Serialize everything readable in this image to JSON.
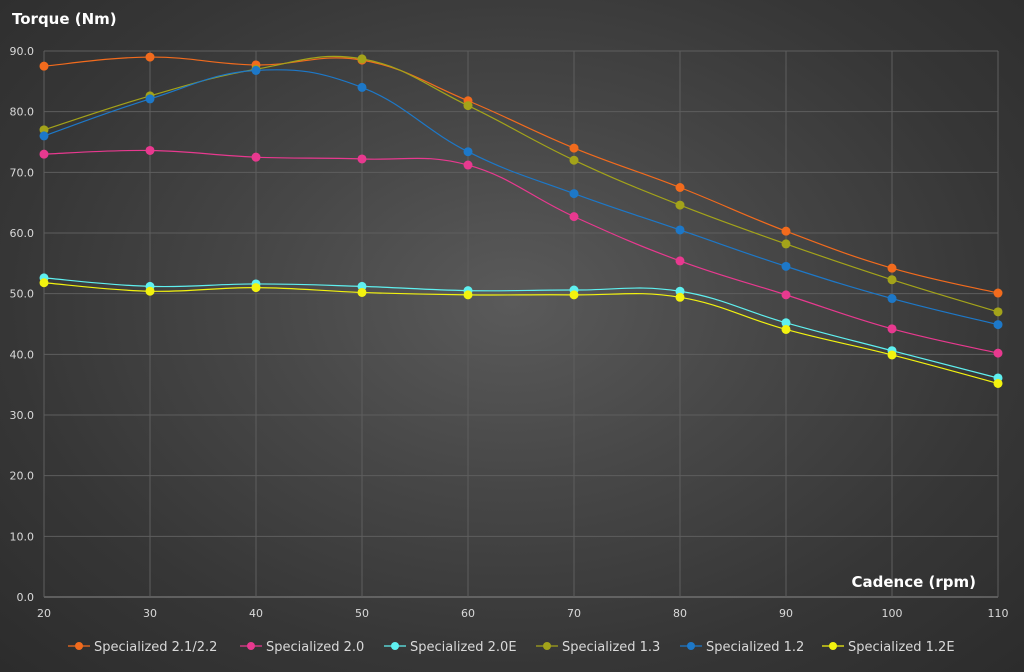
{
  "chart_data": {
    "type": "line",
    "ylabel": "Torque (Nm)",
    "xlabel": "Cadence (rpm)",
    "x": [
      20,
      30,
      40,
      50,
      60,
      70,
      80,
      90,
      100,
      110
    ],
    "x_tick_labels": [
      "20",
      "30",
      "40",
      "50",
      "60",
      "70",
      "80",
      "90",
      "100",
      "110"
    ],
    "ylim": [
      0,
      90
    ],
    "y_tick_labels": [
      "0.0",
      "10.0",
      "20.0",
      "30.0",
      "40.0",
      "50.0",
      "60.0",
      "70.0",
      "80.0",
      "90.0"
    ],
    "grid": true,
    "legend_position": "bottom",
    "series": [
      {
        "name": "Specialized 2.1/2.2",
        "color": "#f26b1d",
        "values": [
          87.5,
          89.0,
          87.7,
          88.5,
          81.8,
          74.0,
          67.5,
          60.3,
          54.2,
          50.1
        ]
      },
      {
        "name": "Specialized 2.0",
        "color": "#e8398f",
        "values": [
          73.0,
          73.6,
          72.5,
          72.2,
          71.2,
          62.7,
          55.4,
          49.8,
          44.2,
          40.2
        ]
      },
      {
        "name": "Specialized 2.0E",
        "color": "#5ff0f0",
        "values": [
          52.6,
          51.2,
          51.6,
          51.2,
          50.5,
          50.6,
          50.4,
          45.2,
          40.6,
          36.1
        ]
      },
      {
        "name": "Specialized 1.3",
        "color": "#a3a31a",
        "values": [
          77.0,
          82.6,
          87.0,
          88.7,
          81.0,
          72.0,
          64.6,
          58.2,
          52.3,
          47.0
        ]
      },
      {
        "name": "Specialized 1.2",
        "color": "#1d78c8",
        "values": [
          76.0,
          82.1,
          86.8,
          84.0,
          73.4,
          66.5,
          60.5,
          54.5,
          49.2,
          44.9
        ]
      },
      {
        "name": "Specialized 1.2E",
        "color": "#f2f20f",
        "values": [
          51.8,
          50.4,
          51.0,
          50.2,
          49.8,
          49.8,
          49.4,
          44.1,
          39.9,
          35.2
        ]
      }
    ]
  }
}
